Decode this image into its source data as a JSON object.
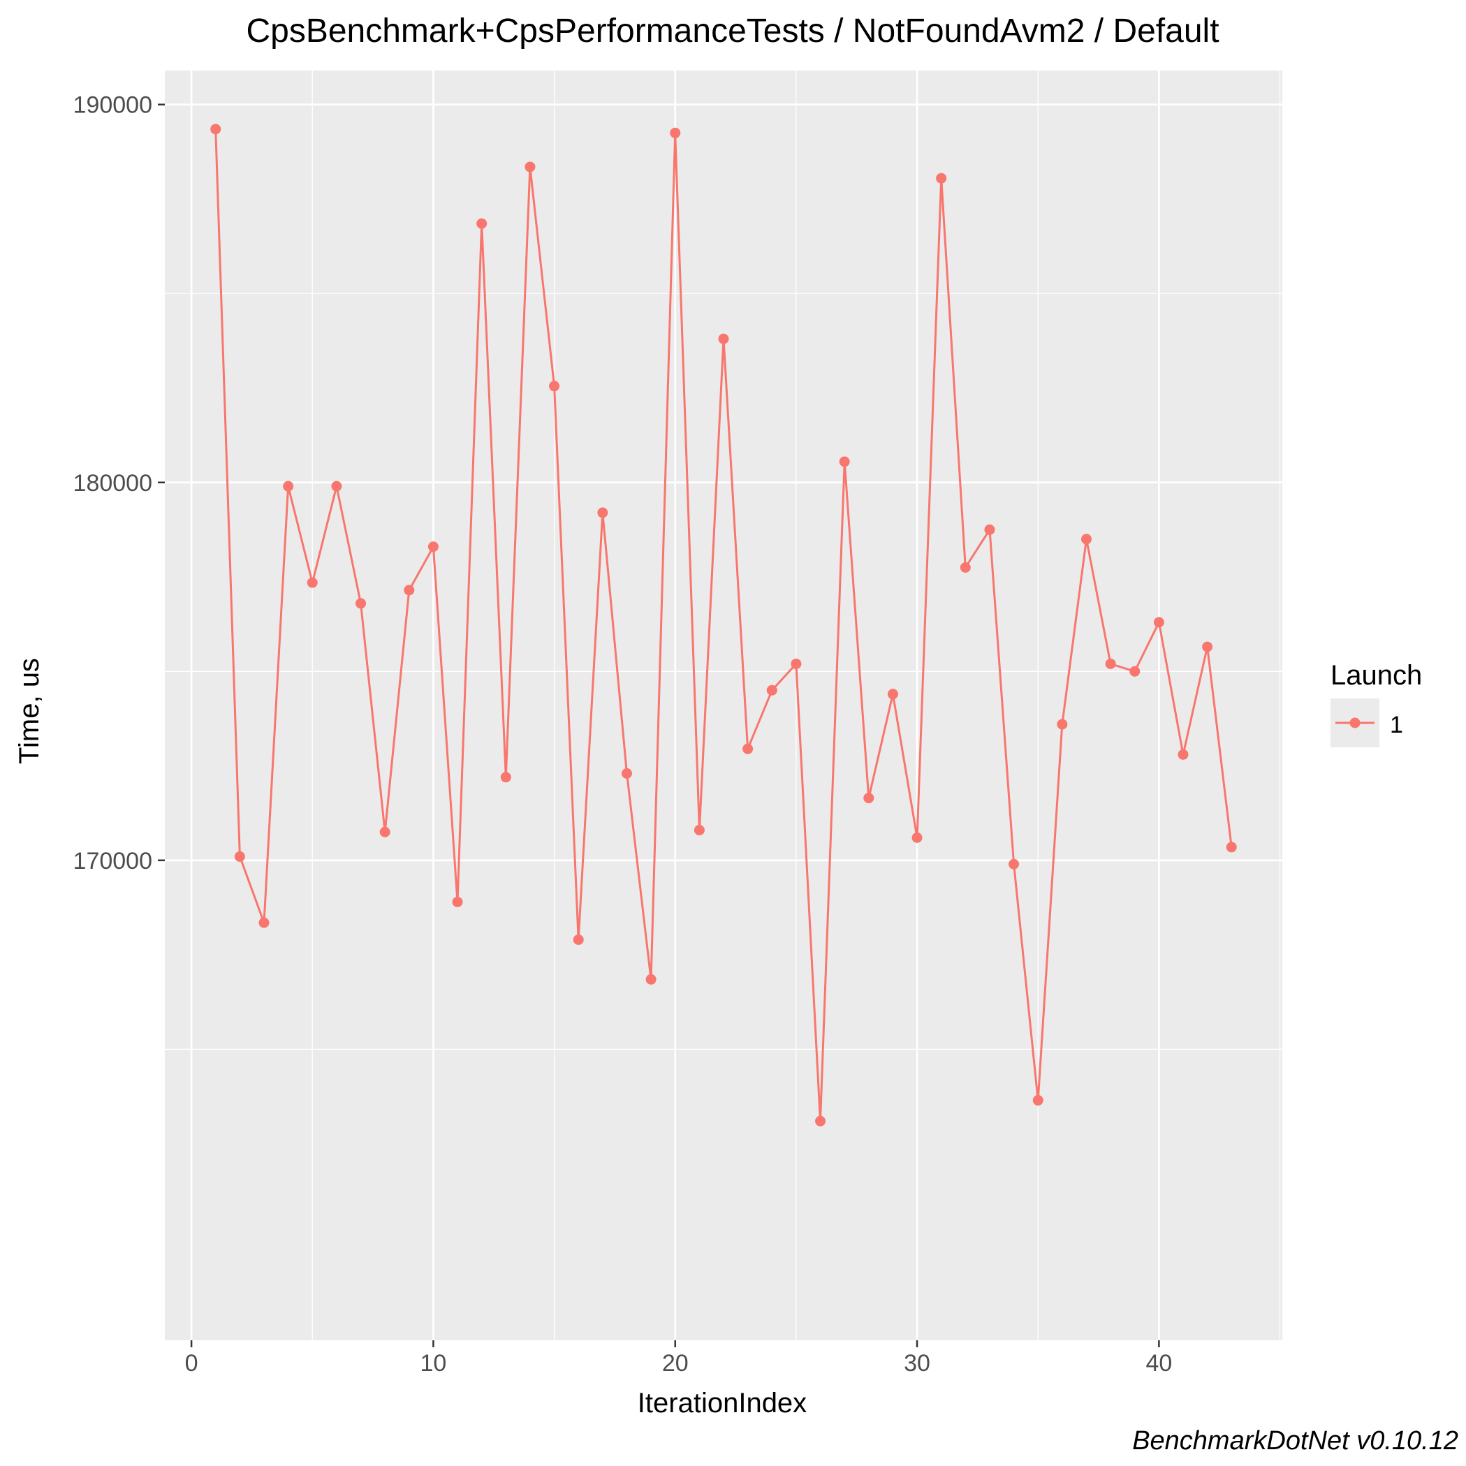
{
  "chart_data": {
    "type": "line",
    "title": "CpsBenchmark+CpsPerformanceTests / NotFoundAvm2 / Default",
    "xlabel": "IterationIndex",
    "ylabel": "Time, us",
    "caption": "BenchmarkDotNet v0.10.12",
    "xlim": [
      -1.1,
      45.1
    ],
    "ylim": [
      157300,
      190900
    ],
    "x_ticks": [
      0,
      10,
      20,
      30,
      40
    ],
    "y_ticks": [
      170000,
      180000,
      190000
    ],
    "y_minor_ticks": [
      165000,
      175000,
      185000
    ],
    "x_minor_ticks": [
      5,
      15,
      25,
      35,
      45
    ],
    "grid": true,
    "legend": {
      "title": "Launch",
      "position": "right",
      "entries": [
        "1"
      ]
    },
    "colors": {
      "series": "#F8766D",
      "panel": "#EBEBEB",
      "grid": "#FFFFFF",
      "text": "#000000",
      "tick_text": "#4D4D4D"
    },
    "series": [
      {
        "name": "1",
        "x": [
          1,
          2,
          3,
          4,
          5,
          6,
          7,
          8,
          9,
          10,
          11,
          12,
          13,
          14,
          15,
          16,
          17,
          18,
          19,
          20,
          21,
          22,
          23,
          24,
          25,
          26,
          27,
          28,
          29,
          30,
          31,
          32,
          33,
          34,
          35,
          36,
          37,
          38,
          39,
          40,
          41,
          42,
          43
        ],
        "values": [
          189350,
          170100,
          168350,
          179900,
          177350,
          179900,
          176800,
          170750,
          177150,
          178300,
          168900,
          186850,
          172200,
          188350,
          182550,
          167900,
          179200,
          172300,
          166850,
          189250,
          170800,
          183800,
          172950,
          174500,
          175200,
          163100,
          180550,
          171650,
          174400,
          170600,
          188050,
          177750,
          178750,
          169900,
          163650,
          173600,
          178500,
          175200,
          175000,
          176300,
          172800,
          175650,
          170350
        ]
      }
    ]
  }
}
